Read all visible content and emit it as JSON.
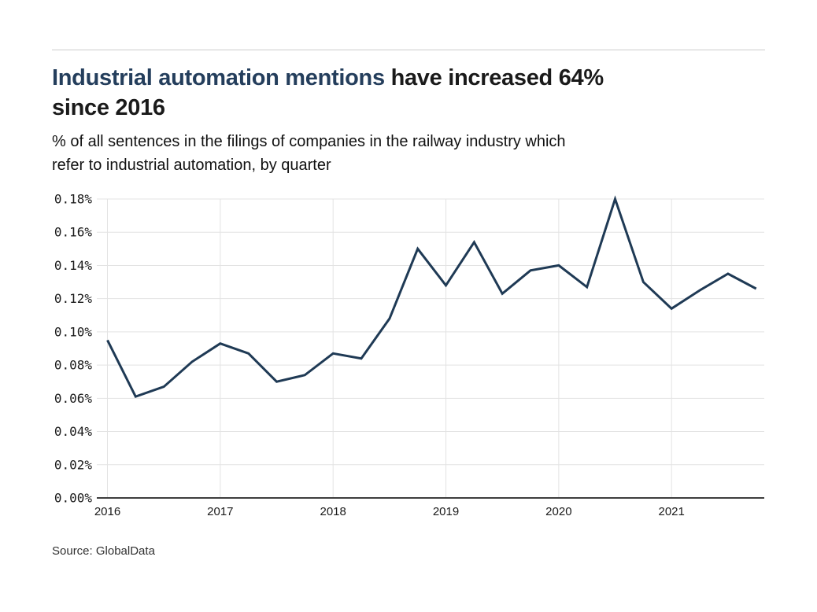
{
  "page": {
    "title": {
      "accent": "Industrial automation mentions",
      "rest_line1": " have increased 64%",
      "line2": "since 2016"
    },
    "subtitle_line1": "% of all sentences in the filings of companies in the railway industry which",
    "subtitle_line2": "refer to industrial automation, by quarter",
    "source": "Source: GlobalData"
  },
  "chart_data": {
    "type": "line",
    "title": "Industrial automation mentions have increased 64% since 2016",
    "subtitle": "% of all sentences in the filings of companies in the railway industry which refer to industrial automation, by quarter",
    "x": [
      "2016 Q1",
      "2016 Q2",
      "2016 Q3",
      "2016 Q4",
      "2017 Q1",
      "2017 Q2",
      "2017 Q3",
      "2017 Q4",
      "2018 Q1",
      "2018 Q2",
      "2018 Q3",
      "2018 Q4",
      "2019 Q1",
      "2019 Q2",
      "2019 Q3",
      "2019 Q4",
      "2020 Q1",
      "2020 Q2",
      "2020 Q3",
      "2020 Q4",
      "2021 Q1",
      "2021 Q2",
      "2021 Q3",
      "2021 Q4"
    ],
    "values": [
      0.095,
      0.061,
      0.067,
      0.082,
      0.093,
      0.087,
      0.07,
      0.074,
      0.087,
      0.084,
      0.108,
      0.15,
      0.128,
      0.154,
      0.123,
      0.137,
      0.14,
      0.127,
      0.18,
      0.13,
      0.114,
      0.125,
      0.135,
      0.126
    ],
    "x_tick_labels": [
      "2016",
      "2017",
      "2018",
      "2019",
      "2020",
      "2021"
    ],
    "y_tick_labels": [
      "0.00%",
      "0.02%",
      "0.04%",
      "0.06%",
      "0.08%",
      "0.10%",
      "0.12%",
      "0.14%",
      "0.16%",
      "0.18%"
    ],
    "ylim": [
      0,
      0.18
    ],
    "y_tick_step": 0.02,
    "xlabel": "",
    "ylabel": "",
    "grid": true,
    "legend": "none",
    "line_color": "#1f3a55",
    "grid_color": "#e3e3e3",
    "axis_color": "#3d3d3d",
    "tick_text_color": "#1a1a1a",
    "source": "Source: GlobalData"
  }
}
